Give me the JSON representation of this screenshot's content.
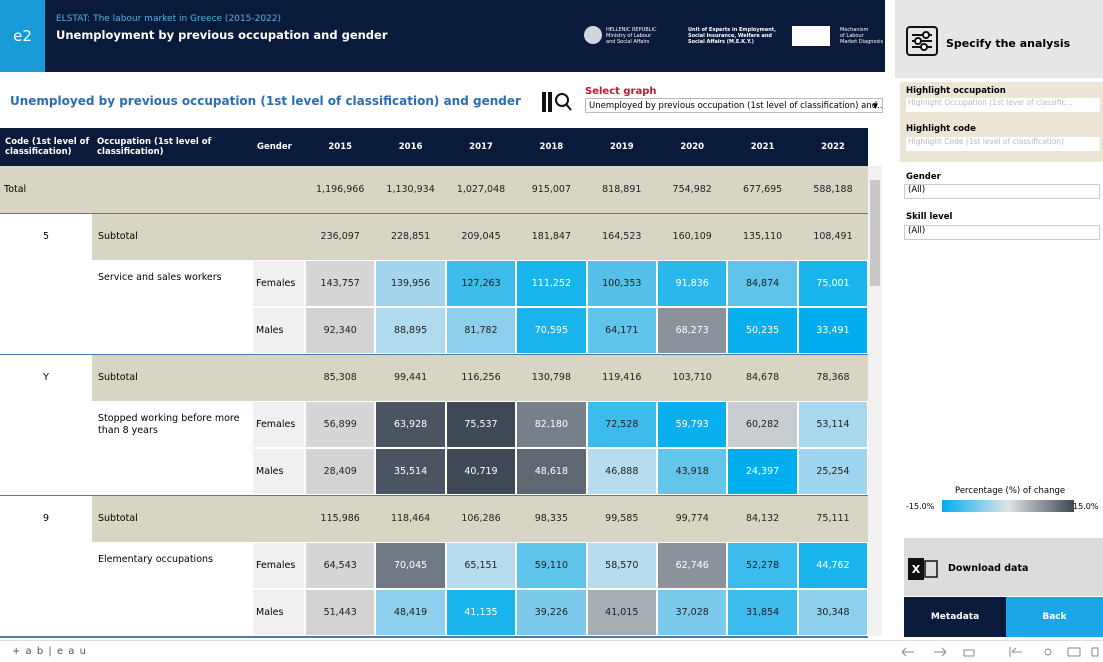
{
  "header": {
    "badge": "e2",
    "source": "ELSTAT: The labour market in Greece (2015-2022)",
    "title": "Unemployment by previous occupation and gender",
    "logo1": [
      "HELLENIC REPUBLIC",
      "Ministry of Labour",
      "and Social Affairs"
    ],
    "logo2": [
      "Unit of Experts in Employment,",
      "Social Insurance, Welfare and",
      "Social Affairs (M.E.K.Y.)"
    ],
    "logo3": [
      "Mechanism",
      "of Labour",
      "Market Diagnosis"
    ]
  },
  "subtitle": "Unemployed by previous occupation (1st level of classification) and gender",
  "select_graph": {
    "label": "Select graph",
    "value": "Unemployed by previous occupation (1st level of classification) and..."
  },
  "table": {
    "columns": [
      "Code (1st level of classification)",
      "Occupation (1st level of classification)",
      "Gender",
      "2015",
      "2016",
      "2017",
      "2018",
      "2019",
      "2020",
      "2021",
      "2022"
    ],
    "rows": [
      {
        "code": "Total",
        "values": [
          "1,196,966",
          "1,130,934",
          "1,027,048",
          "915,007",
          "818,891",
          "754,982",
          "677,695",
          "588,188"
        ]
      },
      {
        "code": "5",
        "occupation": "Subtotal",
        "values": [
          "236,097",
          "228,851",
          "209,045",
          "181,847",
          "164,523",
          "160,109",
          "135,110",
          "108,491"
        ]
      },
      {
        "occupation": "Service and sales workers",
        "gender": "Females",
        "values": [
          "143,757",
          "139,956",
          "127,263",
          "111,252",
          "100,353",
          "91,836",
          "84,874",
          "75,001"
        ],
        "fills": [
          "#d6d6d6",
          "#a3d6ee",
          "#3dbbea",
          "#1ab4ec",
          "#55c1ea",
          "#2ab7eb",
          "#5fc3ea",
          "#1ab4ec"
        ]
      },
      {
        "gender": "Males",
        "values": [
          "92,340",
          "88,895",
          "81,782",
          "70,595",
          "64,171",
          "68,273",
          "50,235",
          "33,491"
        ],
        "fills": [
          "#d3d3d3",
          "#b0dbee",
          "#8dcfec",
          "#1ab4ec",
          "#5fc3ea",
          "#8a939b",
          "#0aafef",
          "#00aeef"
        ]
      },
      {
        "code": "Y",
        "occupation": "Subtotal",
        "values": [
          "85,308",
          "99,441",
          "116,256",
          "130,798",
          "119,416",
          "103,710",
          "84,678",
          "78,368"
        ]
      },
      {
        "occupation": "Stopped working before more than 8 years",
        "gender": "Females",
        "values": [
          "56,899",
          "63,928",
          "75,537",
          "82,180",
          "72,528",
          "59,793",
          "60,282",
          "53,114"
        ],
        "fills": [
          "#d6d6d6",
          "#4b5562",
          "#3e4955",
          "#76808a",
          "#3cbcec",
          "#0aafef",
          "#c7cdd1",
          "#a9d8ee"
        ]
      },
      {
        "gender": "Males",
        "values": [
          "28,409",
          "35,514",
          "40,719",
          "48,618",
          "46,888",
          "43,918",
          "24,397",
          "25,254"
        ],
        "fills": [
          "#d3d3d3",
          "#4b5562",
          "#3e4955",
          "#5e6873",
          "#b6dcee",
          "#64c5ea",
          "#00aeef",
          "#9fd5ee"
        ]
      },
      {
        "code": "9",
        "occupation": "Subtotal",
        "values": [
          "115,986",
          "118,464",
          "106,286",
          "98,335",
          "99,585",
          "99,774",
          "84,132",
          "75,111"
        ]
      },
      {
        "occupation": "Elementary occupations",
        "gender": "Females",
        "values": [
          "64,543",
          "70,045",
          "65,151",
          "59,110",
          "58,570",
          "62,746",
          "52,278",
          "44,762"
        ],
        "fills": [
          "#d6d6d6",
          "#6f7983",
          "#b6dcee",
          "#5fc3ea",
          "#b6dcee",
          "#8a939b",
          "#3cbcec",
          "#1ab4ec"
        ]
      },
      {
        "gender": "Males",
        "values": [
          "51,443",
          "48,419",
          "41,135",
          "39,226",
          "41,015",
          "37,028",
          "31,854",
          "30,348"
        ],
        "fills": [
          "#d3d3d3",
          "#8dcfec",
          "#1ab4ec",
          "#7bcaec",
          "#a6adb3",
          "#7bcaec",
          "#3cbcec",
          "#8dcfec"
        ]
      }
    ]
  },
  "side": {
    "title": "Specify the analysis",
    "highlight_occupation": {
      "label": "Highlight occupation",
      "placeholder": "Highlight Occupation (1st level of classific..."
    },
    "highlight_code": {
      "label": "Highlight code",
      "placeholder": "Highlight Code (1st level of classification)"
    },
    "gender": {
      "label": "Gender",
      "value": "(All)"
    },
    "skill": {
      "label": "Skill level",
      "value": "(All)"
    },
    "legend": {
      "title": "Percentage (%) of change",
      "min": "-15.0%",
      "max": "15.0%"
    },
    "download": "Download data",
    "metadata": "Metadata",
    "back": "Back"
  },
  "footer": {
    "logo": "+ a b | e a u"
  }
}
